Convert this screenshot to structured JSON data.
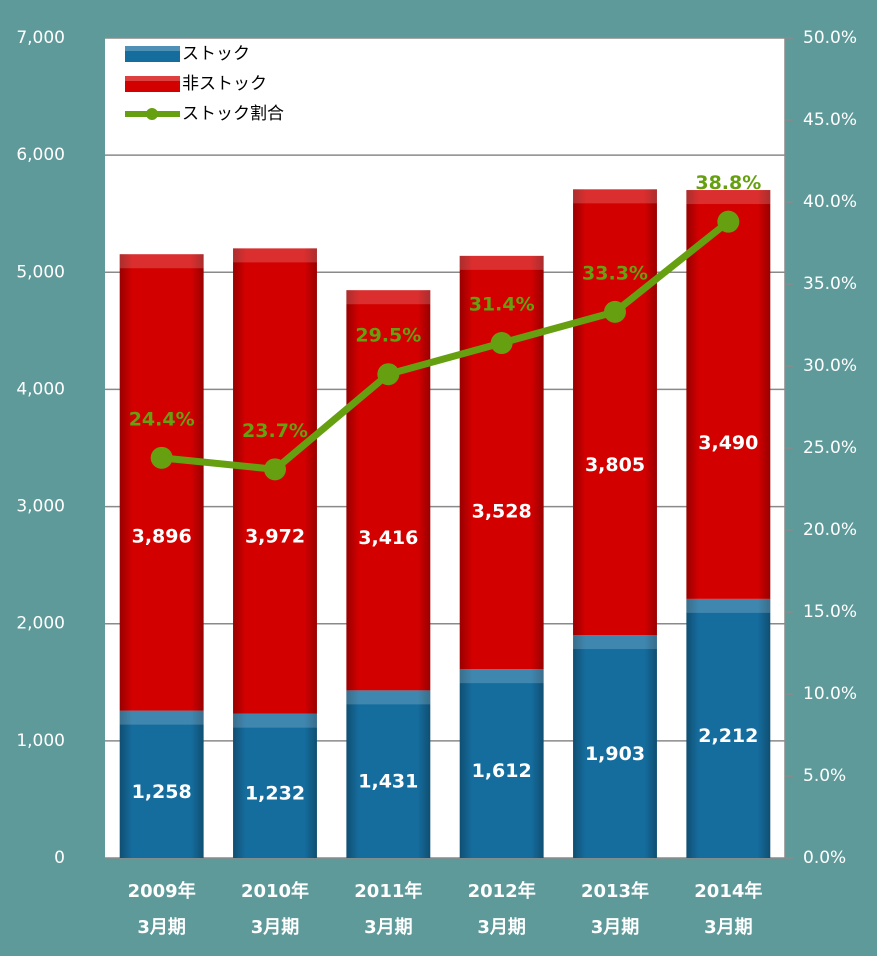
{
  "chart_data": {
    "type": "bar",
    "stacked": true,
    "categories": [
      [
        "2009年",
        "3月期"
      ],
      [
        "2010年",
        "3月期"
      ],
      [
        "2011年",
        "3月期"
      ],
      [
        "2012年",
        "3月期"
      ],
      [
        "2013年",
        "3月期"
      ],
      [
        "2014年",
        "3月期"
      ]
    ],
    "series": [
      {
        "name": "ストック",
        "type": "bar",
        "color": "#156d9e",
        "values": [
          1258,
          1232,
          1431,
          1612,
          1903,
          2212
        ],
        "value_labels": [
          "1,258",
          "1,232",
          "1,431",
          "1,612",
          "1,903",
          "2,212"
        ]
      },
      {
        "name": "非ストック",
        "type": "bar",
        "color": "#d30000",
        "values": [
          3896,
          3972,
          3416,
          3528,
          3805,
          3490
        ],
        "value_labels": [
          "3,896",
          "3,972",
          "3,416",
          "3,528",
          "3,805",
          "3,490"
        ]
      },
      {
        "name": "ストック割合",
        "type": "line",
        "axis": "y2",
        "color": "#66a011",
        "values": [
          24.4,
          23.7,
          29.5,
          31.4,
          33.3,
          38.8
        ],
        "value_labels": [
          "24.4%",
          "23.7%",
          "29.5%",
          "31.4%",
          "33.3%",
          "38.8%"
        ]
      }
    ],
    "ylim": [
      0,
      7000
    ],
    "yticks": [
      0,
      {
        "value": 1000,
        "label": "1,000"
      },
      {
        "value": 2000,
        "label": "2,000"
      },
      {
        "value": 3000,
        "label": "3,000"
      },
      {
        "value": 4000,
        "label": "4,000"
      },
      {
        "value": 5000,
        "label": "5,000"
      },
      {
        "value": 6000,
        "label": "6,000"
      },
      {
        "value": 7000,
        "label": "7,000"
      }
    ],
    "y2lim": [
      0,
      50
    ],
    "y2ticks": [
      {
        "value": 0,
        "label": "0.0%"
      },
      {
        "value": 5,
        "label": "5.0%"
      },
      {
        "value": 10,
        "label": "10.0%"
      },
      {
        "value": 15,
        "label": "15.0%"
      },
      {
        "value": 20,
        "label": "20.0%"
      },
      {
        "value": 25,
        "label": "25.0%"
      },
      {
        "value": 30,
        "label": "30.0%"
      },
      {
        "value": 35,
        "label": "35.0%"
      },
      {
        "value": 40,
        "label": "40.0%"
      },
      {
        "value": 45,
        "label": "45.0%"
      },
      {
        "value": 50,
        "label": "50.0%"
      }
    ],
    "grid": true,
    "legend": "top-left"
  }
}
